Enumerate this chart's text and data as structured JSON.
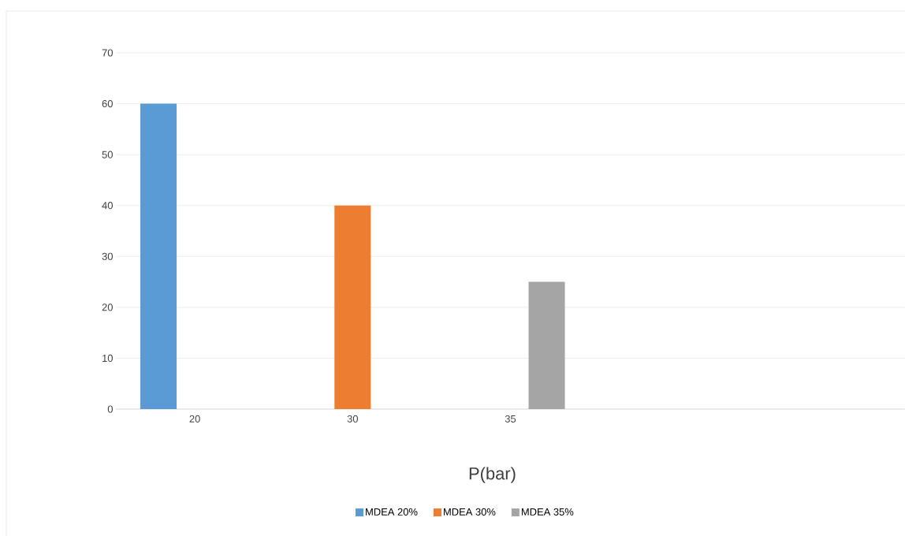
{
  "chart_data": {
    "type": "bar",
    "xlabel": "P(bar)",
    "categories": [
      "20",
      "30",
      "35",
      null,
      null
    ],
    "series": [
      {
        "name": "MDEA 20%",
        "color": "#5b9bd5",
        "values": [
          60,
          null,
          null,
          null,
          null
        ]
      },
      {
        "name": "MDEA 30%",
        "color": "#ed7d31",
        "values": [
          null,
          40,
          null,
          null,
          null
        ]
      },
      {
        "name": "MDEA 35%",
        "color": "#a5a5a5",
        "values": [
          null,
          null,
          25,
          null,
          null
        ]
      }
    ],
    "ylim": [
      0,
      70
    ],
    "yticks": [
      0,
      10,
      20,
      30,
      40,
      50,
      60,
      70
    ],
    "grid": "y",
    "legend": "bottom"
  }
}
